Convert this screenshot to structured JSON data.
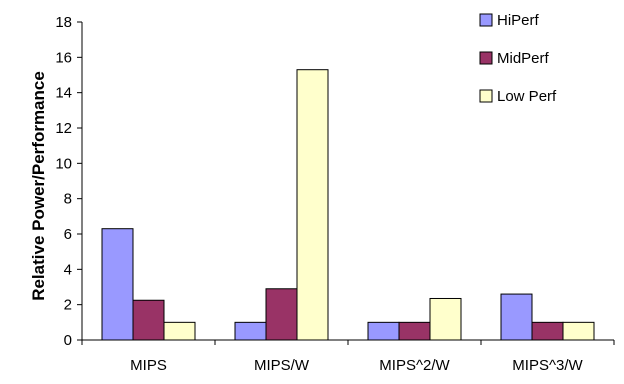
{
  "chart_data": {
    "type": "bar",
    "categories": [
      "MIPS",
      "MIPS/W",
      "MIPS^2/W",
      "MIPS^3/W"
    ],
    "series": [
      {
        "name": "HiPerf",
        "color": "#9999ff",
        "values": [
          6.3,
          1.0,
          1.0,
          2.6
        ]
      },
      {
        "name": "MidPerf",
        "color": "#993366",
        "values": [
          2.25,
          2.9,
          1.0,
          1.0
        ]
      },
      {
        "name": "Low Perf",
        "color": "#ffffcc",
        "values": [
          1.0,
          15.3,
          2.35,
          1.0
        ]
      }
    ],
    "ylabel": "Relative Power/Performance",
    "xlabel": "",
    "ylim": [
      0,
      18
    ],
    "yticks": [
      0,
      2,
      4,
      6,
      8,
      10,
      12,
      14,
      16,
      18
    ],
    "grid": false,
    "legend_position": "top-right"
  }
}
